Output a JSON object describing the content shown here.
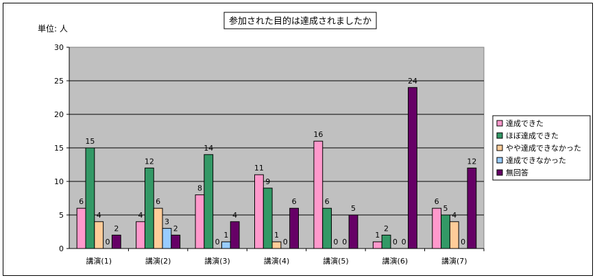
{
  "chart_data": {
    "type": "bar",
    "title": "参加された目的は達成されましたか",
    "unit_label": "単位: 人",
    "categories": [
      "講演(1)",
      "講演(2)",
      "講演(3)",
      "講演(4)",
      "講演(5)",
      "講演(6)",
      "講演(7)"
    ],
    "series": [
      {
        "name": "達成できた",
        "color": "#ff99cc",
        "values": [
          6,
          4,
          8,
          11,
          16,
          1,
          6
        ]
      },
      {
        "name": "ほぼ達成できた",
        "color": "#339966",
        "values": [
          15,
          12,
          14,
          9,
          6,
          2,
          5
        ]
      },
      {
        "name": "やや達成できなかった",
        "color": "#ffcc99",
        "values": [
          4,
          6,
          0,
          1,
          0,
          0,
          4
        ]
      },
      {
        "name": "達成できなかった",
        "color": "#99ccff",
        "values": [
          0,
          3,
          1,
          0,
          0,
          0,
          0
        ]
      },
      {
        "name": "無回答",
        "color": "#660066",
        "values": [
          2,
          2,
          4,
          6,
          5,
          24,
          12
        ]
      }
    ],
    "y_ticks": [
      "0",
      "5",
      "10",
      "15",
      "20",
      "25",
      "30"
    ],
    "ylim": [
      0,
      30
    ],
    "grid": true,
    "legend_position": "right",
    "plot_background": "#c0c0c0"
  }
}
